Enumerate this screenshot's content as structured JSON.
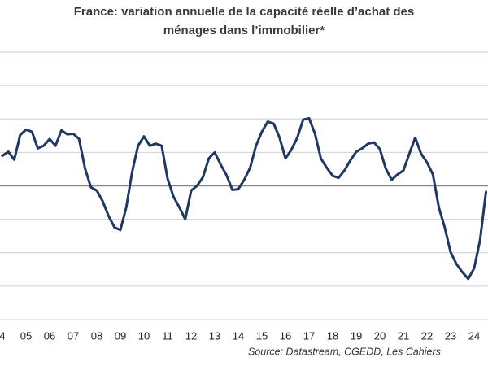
{
  "chart_data": {
    "type": "line",
    "title": [
      "France: variation annuelle de la capacité réelle  d’achat des",
      "ménages dans l’immobilier*"
    ],
    "source": "Source: Datastream, CGEDD, Les Cahiers",
    "categories": [
      "4",
      null,
      null,
      null,
      "05",
      null,
      null,
      null,
      "06",
      null,
      null,
      null,
      "07",
      null,
      null,
      null,
      "08",
      null,
      null,
      null,
      "09",
      null,
      null,
      null,
      "10",
      null,
      null,
      null,
      "11",
      null,
      null,
      null,
      "12",
      null,
      null,
      null,
      "13",
      null,
      null,
      null,
      "14",
      null,
      null,
      null,
      "15",
      null,
      null,
      null,
      "16",
      null,
      null,
      null,
      "17",
      null,
      null,
      null,
      "18",
      null,
      null,
      null,
      "19",
      null,
      null,
      null,
      "20",
      null,
      null,
      null,
      "21",
      null,
      null,
      null,
      "22",
      null,
      null,
      null,
      "23",
      null,
      null,
      null,
      "24",
      null,
      null
    ],
    "values": [
      4.5,
      5.1,
      3.9,
      7.6,
      8.4,
      8.1,
      5.6,
      6.0,
      7.0,
      6.0,
      8.3,
      7.7,
      7.8,
      7.0,
      2.6,
      -0.2,
      -0.7,
      -2.3,
      -4.5,
      -6.2,
      -6.6,
      -3.2,
      2.1,
      6.0,
      7.4,
      6.0,
      6.3,
      6.0,
      1.1,
      -1.6,
      -3.2,
      -5.0,
      -0.7,
      0,
      1.3,
      4.1,
      5.0,
      3.2,
      1.6,
      -0.6,
      -0.5,
      0.9,
      2.7,
      6.0,
      8.1,
      9.6,
      9.3,
      7.2,
      4.1,
      5.4,
      7.2,
      9.9,
      10.1,
      7.8,
      4.1,
      2.7,
      1.5,
      1.2,
      2.3,
      3.8,
      5.1,
      5.6,
      6.3,
      6.5,
      5.5,
      2.6,
      0.9,
      1.7,
      2.3,
      4.8,
      7.2,
      4.8,
      3.5,
      1.7,
      -3.2,
      -6.2,
      -9.9,
      -11.7,
      -12.9,
      -13.9,
      -12.3,
      -8.1,
      -0.9
    ],
    "color": "#1f3864",
    "ylim": [
      -20,
      20
    ],
    "yticks": [
      -20,
      -15,
      -10,
      -5,
      0,
      5,
      10,
      15,
      20
    ],
    "grid": true
  }
}
